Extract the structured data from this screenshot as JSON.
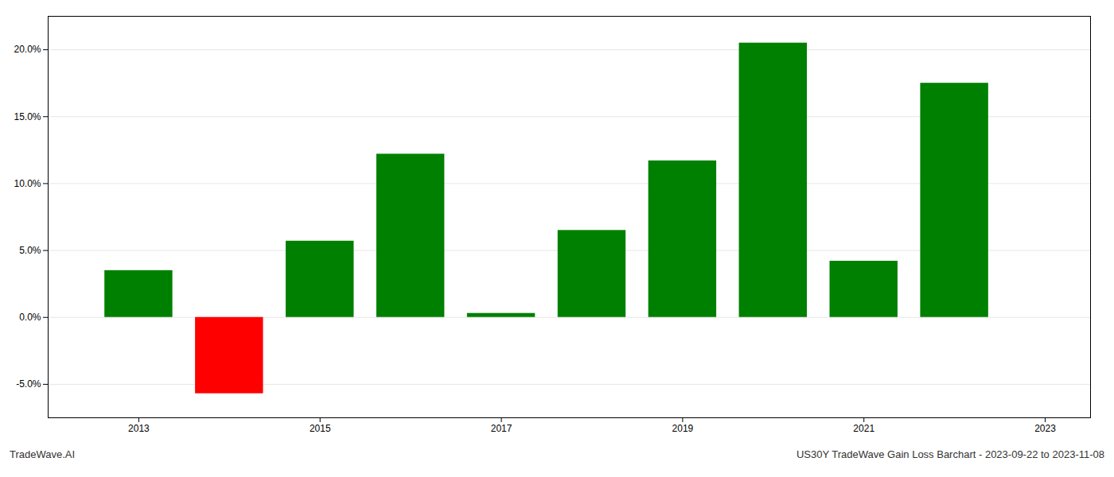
{
  "chart_data": {
    "type": "bar",
    "x": [
      2013,
      2014,
      2015,
      2016,
      2017,
      2018,
      2019,
      2020,
      2021,
      2022
    ],
    "values": [
      3.5,
      -5.7,
      5.7,
      12.2,
      0.3,
      6.5,
      11.7,
      20.5,
      4.2,
      17.5
    ],
    "colors": [
      "#008000",
      "#ff0000",
      "#008000",
      "#008000",
      "#008000",
      "#008000",
      "#008000",
      "#008000",
      "#008000",
      "#008000"
    ],
    "xlim": [
      2012.0,
      2023.5
    ],
    "xticks": [
      2013,
      2015,
      2017,
      2019,
      2021,
      2023
    ],
    "ylim": [
      -7.5,
      22.5
    ],
    "yticks": [
      {
        "value": -5,
        "label": "-5.0%"
      },
      {
        "value": 0,
        "label": "0.0%"
      },
      {
        "value": 5,
        "label": "5.0%"
      },
      {
        "value": 10,
        "label": "10.0%"
      },
      {
        "value": 15,
        "label": "15.0%"
      },
      {
        "value": 20,
        "label": "20.0%"
      }
    ],
    "grid": true,
    "annotations": [
      "TradeWave.AI",
      "US30Y TradeWave Gain Loss Barchart - 2023-09-22 to 2023-11-08"
    ]
  }
}
